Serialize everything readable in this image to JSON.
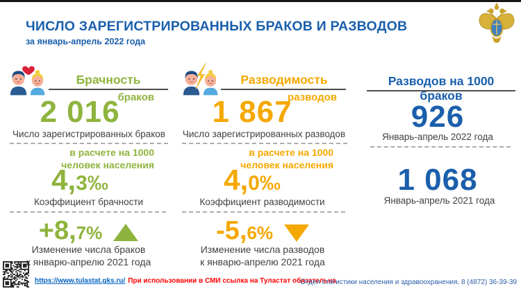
{
  "header": {
    "title": "ЧИСЛО ЗАРЕГИСТРИРОВАННЫХ БРАКОВ И РАЗВОДОВ",
    "subtitle": "за январь-апрель 2022 года"
  },
  "marriage": {
    "label": "Брачность",
    "unit": "браков",
    "count": "2 016",
    "count_caption": "Число зарегистрированных браков",
    "rate_note_line1": "в расчете на 1000",
    "rate_note_line2": "человек населения",
    "rate_big": "4,",
    "rate_small": "3‰",
    "rate_caption": "Коэффициент брачности",
    "change_big": "+8,",
    "change_small": "7%",
    "change_caption_line1": "Изменение числа браков",
    "change_caption_line2": "к январю-апрелю 2021 года"
  },
  "divorce": {
    "label": "Разводимость",
    "unit": "разводов",
    "count": "1 867",
    "count_caption": "Число зарегистрированных разводов",
    "rate_note_line1": "в расчете на 1000",
    "rate_note_line2": "человек населения",
    "rate_big": "4,",
    "rate_small": "0‰",
    "rate_caption": "Коэффициент разводимости",
    "change_big": "-5,",
    "change_small": "6%",
    "change_caption_line1": "Изменение числа разводов",
    "change_caption_line2": "к январю-апрелю 2021 года"
  },
  "ratio": {
    "label": "Разводов на 1000 браков",
    "value_2022": "926",
    "caption_2022": "Январь-апрель 2022 года",
    "value_2021": "1 068",
    "caption_2021": "Январь-апрель 2021 года"
  },
  "footer": {
    "link": "https://www.tulastat.gks.ru/",
    "notice": "При использовании в СМИ ссылка на Туластат обязательна",
    "department": "Отдел статистики населения и здравоохранения, 8 (4872) 36-39-39"
  },
  "icons": {
    "marriage": "couple-with-heart",
    "divorce": "couple-with-lightning",
    "emblem": "rosstat-double-headed-eagle",
    "qr": "qr-code"
  },
  "colors": {
    "accent_blue": "#1A5FAC",
    "marriage_green": "#8FB43E",
    "divorce_orange": "#F5A800",
    "notice_red": "#FF0000",
    "link_blue": "#0563C1",
    "text_dark": "#404040"
  },
  "chart_data": {
    "type": "table",
    "title": "Число зарегистрированных браков и разводов, январь-апрель 2022",
    "rows": [
      {
        "indicator": "Число зарегистрированных браков",
        "value": 2016
      },
      {
        "indicator": "Коэффициент брачности, на 1000 человек населения",
        "value": 4.3
      },
      {
        "indicator": "Изменение числа браков к январю-апрелю 2021 года, %",
        "value": 8.7
      },
      {
        "indicator": "Число зарегистрированных разводов",
        "value": 1867
      },
      {
        "indicator": "Коэффициент разводимости, на 1000 человек населения",
        "value": 4.0
      },
      {
        "indicator": "Изменение числа разводов к январю-апрелю 2021 года, %",
        "value": -5.6
      },
      {
        "indicator": "Разводов на 1000 браков, январь-апрель 2022 года",
        "value": 926
      },
      {
        "indicator": "Разводов на 1000 браков, январь-апрель 2021 года",
        "value": 1068
      }
    ]
  }
}
